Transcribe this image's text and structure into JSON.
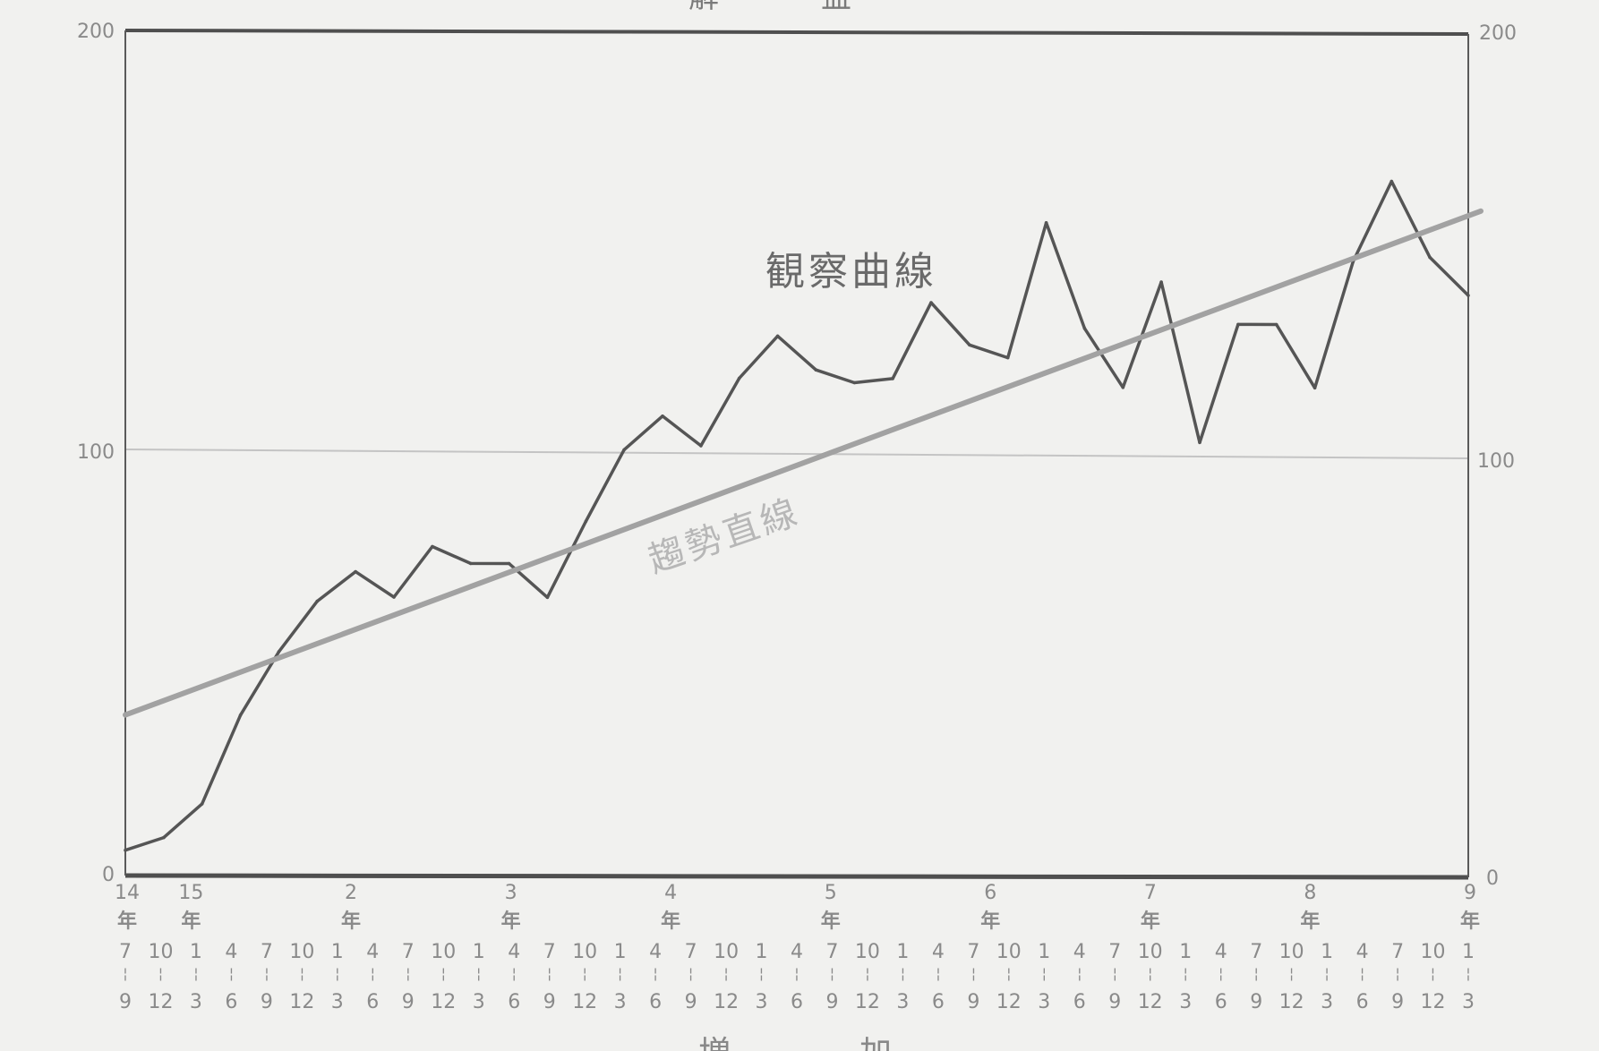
{
  "chart_data": {
    "type": "line",
    "title": "解　益",
    "xlabel": "増　　加",
    "ylim": [
      0,
      200
    ],
    "y_ticks": [
      "0",
      "100",
      "200"
    ],
    "y_ticks_right": [
      "0",
      "100",
      "200"
    ],
    "grid": "horizontal line at 100 only",
    "x_year_labels": [
      {
        "pos": 0,
        "top": "14",
        "bottom": "年"
      },
      {
        "pos": 2,
        "top": "15",
        "bottom": "年"
      },
      {
        "pos": 7,
        "top": "2",
        "bottom": "年"
      },
      {
        "pos": 12,
        "top": "3",
        "bottom": "年"
      },
      {
        "pos": 17,
        "top": "4",
        "bottom": "年"
      },
      {
        "pos": 22,
        "top": "5",
        "bottom": "年"
      },
      {
        "pos": 27,
        "top": "6",
        "bottom": "年"
      },
      {
        "pos": 32,
        "top": "7",
        "bottom": "年"
      },
      {
        "pos": 37,
        "top": "8",
        "bottom": "年"
      },
      {
        "pos": 42,
        "top": "9",
        "bottom": "年"
      }
    ],
    "x_quarter_labels": [
      {
        "pos": 0,
        "start": "7",
        "end": "9"
      },
      {
        "pos": 1,
        "start": "10",
        "end": "12"
      },
      {
        "pos": 2,
        "start": "1",
        "end": "3"
      },
      {
        "pos": 3,
        "start": "4",
        "end": "6"
      },
      {
        "pos": 4,
        "start": "7",
        "end": "9"
      },
      {
        "pos": 5,
        "start": "10",
        "end": "12"
      },
      {
        "pos": 6,
        "start": "1",
        "end": "3"
      },
      {
        "pos": 7,
        "start": "4",
        "end": "6"
      },
      {
        "pos": 8,
        "start": "7",
        "end": "9"
      },
      {
        "pos": 9,
        "start": "10",
        "end": "12"
      },
      {
        "pos": 10,
        "start": "1",
        "end": "3"
      },
      {
        "pos": 11,
        "start": "4",
        "end": "6"
      },
      {
        "pos": 12,
        "start": "7",
        "end": "9"
      },
      {
        "pos": 13,
        "start": "10",
        "end": "12"
      },
      {
        "pos": 14,
        "start": "1",
        "end": "3"
      },
      {
        "pos": 15,
        "start": "4",
        "end": "6"
      },
      {
        "pos": 16,
        "start": "7",
        "end": "9"
      },
      {
        "pos": 17,
        "start": "10",
        "end": "12"
      },
      {
        "pos": 18,
        "start": "1",
        "end": "3"
      },
      {
        "pos": 19,
        "start": "4",
        "end": "6"
      },
      {
        "pos": 20,
        "start": "7",
        "end": "9"
      },
      {
        "pos": 21,
        "start": "10",
        "end": "12"
      },
      {
        "pos": 22,
        "start": "1",
        "end": "3"
      },
      {
        "pos": 23,
        "start": "4",
        "end": "6"
      },
      {
        "pos": 24,
        "start": "7",
        "end": "9"
      },
      {
        "pos": 25,
        "start": "10",
        "end": "12"
      },
      {
        "pos": 26,
        "start": "1",
        "end": "3"
      },
      {
        "pos": 27,
        "start": "4",
        "end": "6"
      },
      {
        "pos": 28,
        "start": "7",
        "end": "9"
      },
      {
        "pos": 29,
        "start": "10",
        "end": "12"
      },
      {
        "pos": 30,
        "start": "1",
        "end": "3"
      },
      {
        "pos": 31,
        "start": "4",
        "end": "6"
      },
      {
        "pos": 32,
        "start": "7",
        "end": "9"
      },
      {
        "pos": 33,
        "start": "10",
        "end": "12"
      },
      {
        "pos": 34,
        "start": "1",
        "end": "3"
      },
      {
        "pos": 35,
        "start": "4",
        "end": "6"
      },
      {
        "pos": 36,
        "start": "7",
        "end": "9"
      },
      {
        "pos": 37,
        "start": "10",
        "end": "12"
      },
      {
        "pos": 38,
        "start": "1",
        "end": "3"
      }
    ],
    "x_range": [
      0,
      38
    ],
    "series": [
      {
        "name": "観察曲線",
        "style": "line",
        "color": "#555555",
        "values": [
          6,
          9,
          17,
          38,
          53,
          65,
          72,
          66,
          78,
          74,
          74,
          66,
          84,
          101,
          109,
          102,
          118,
          128,
          120,
          117,
          118,
          136,
          126,
          123,
          155,
          130,
          116,
          141,
          103,
          131,
          131,
          116,
          146,
          165,
          147,
          138
        ]
      },
      {
        "name": "趨勢直線",
        "style": "straight-line",
        "color": "#a2a2a2",
        "endpoints": [
          [
            0,
            38
          ],
          [
            38,
            158
          ]
        ]
      }
    ],
    "annotations": [
      {
        "text": "観察曲線",
        "near": "observed curve"
      },
      {
        "text": "趨勢直線",
        "near": "trend line"
      }
    ]
  },
  "colors": {
    "background": "#f1f1ef",
    "frame": "#4f4f4f",
    "grid": "#c4c4c4",
    "observed": "#555555",
    "trend": "#a2a2a2"
  }
}
